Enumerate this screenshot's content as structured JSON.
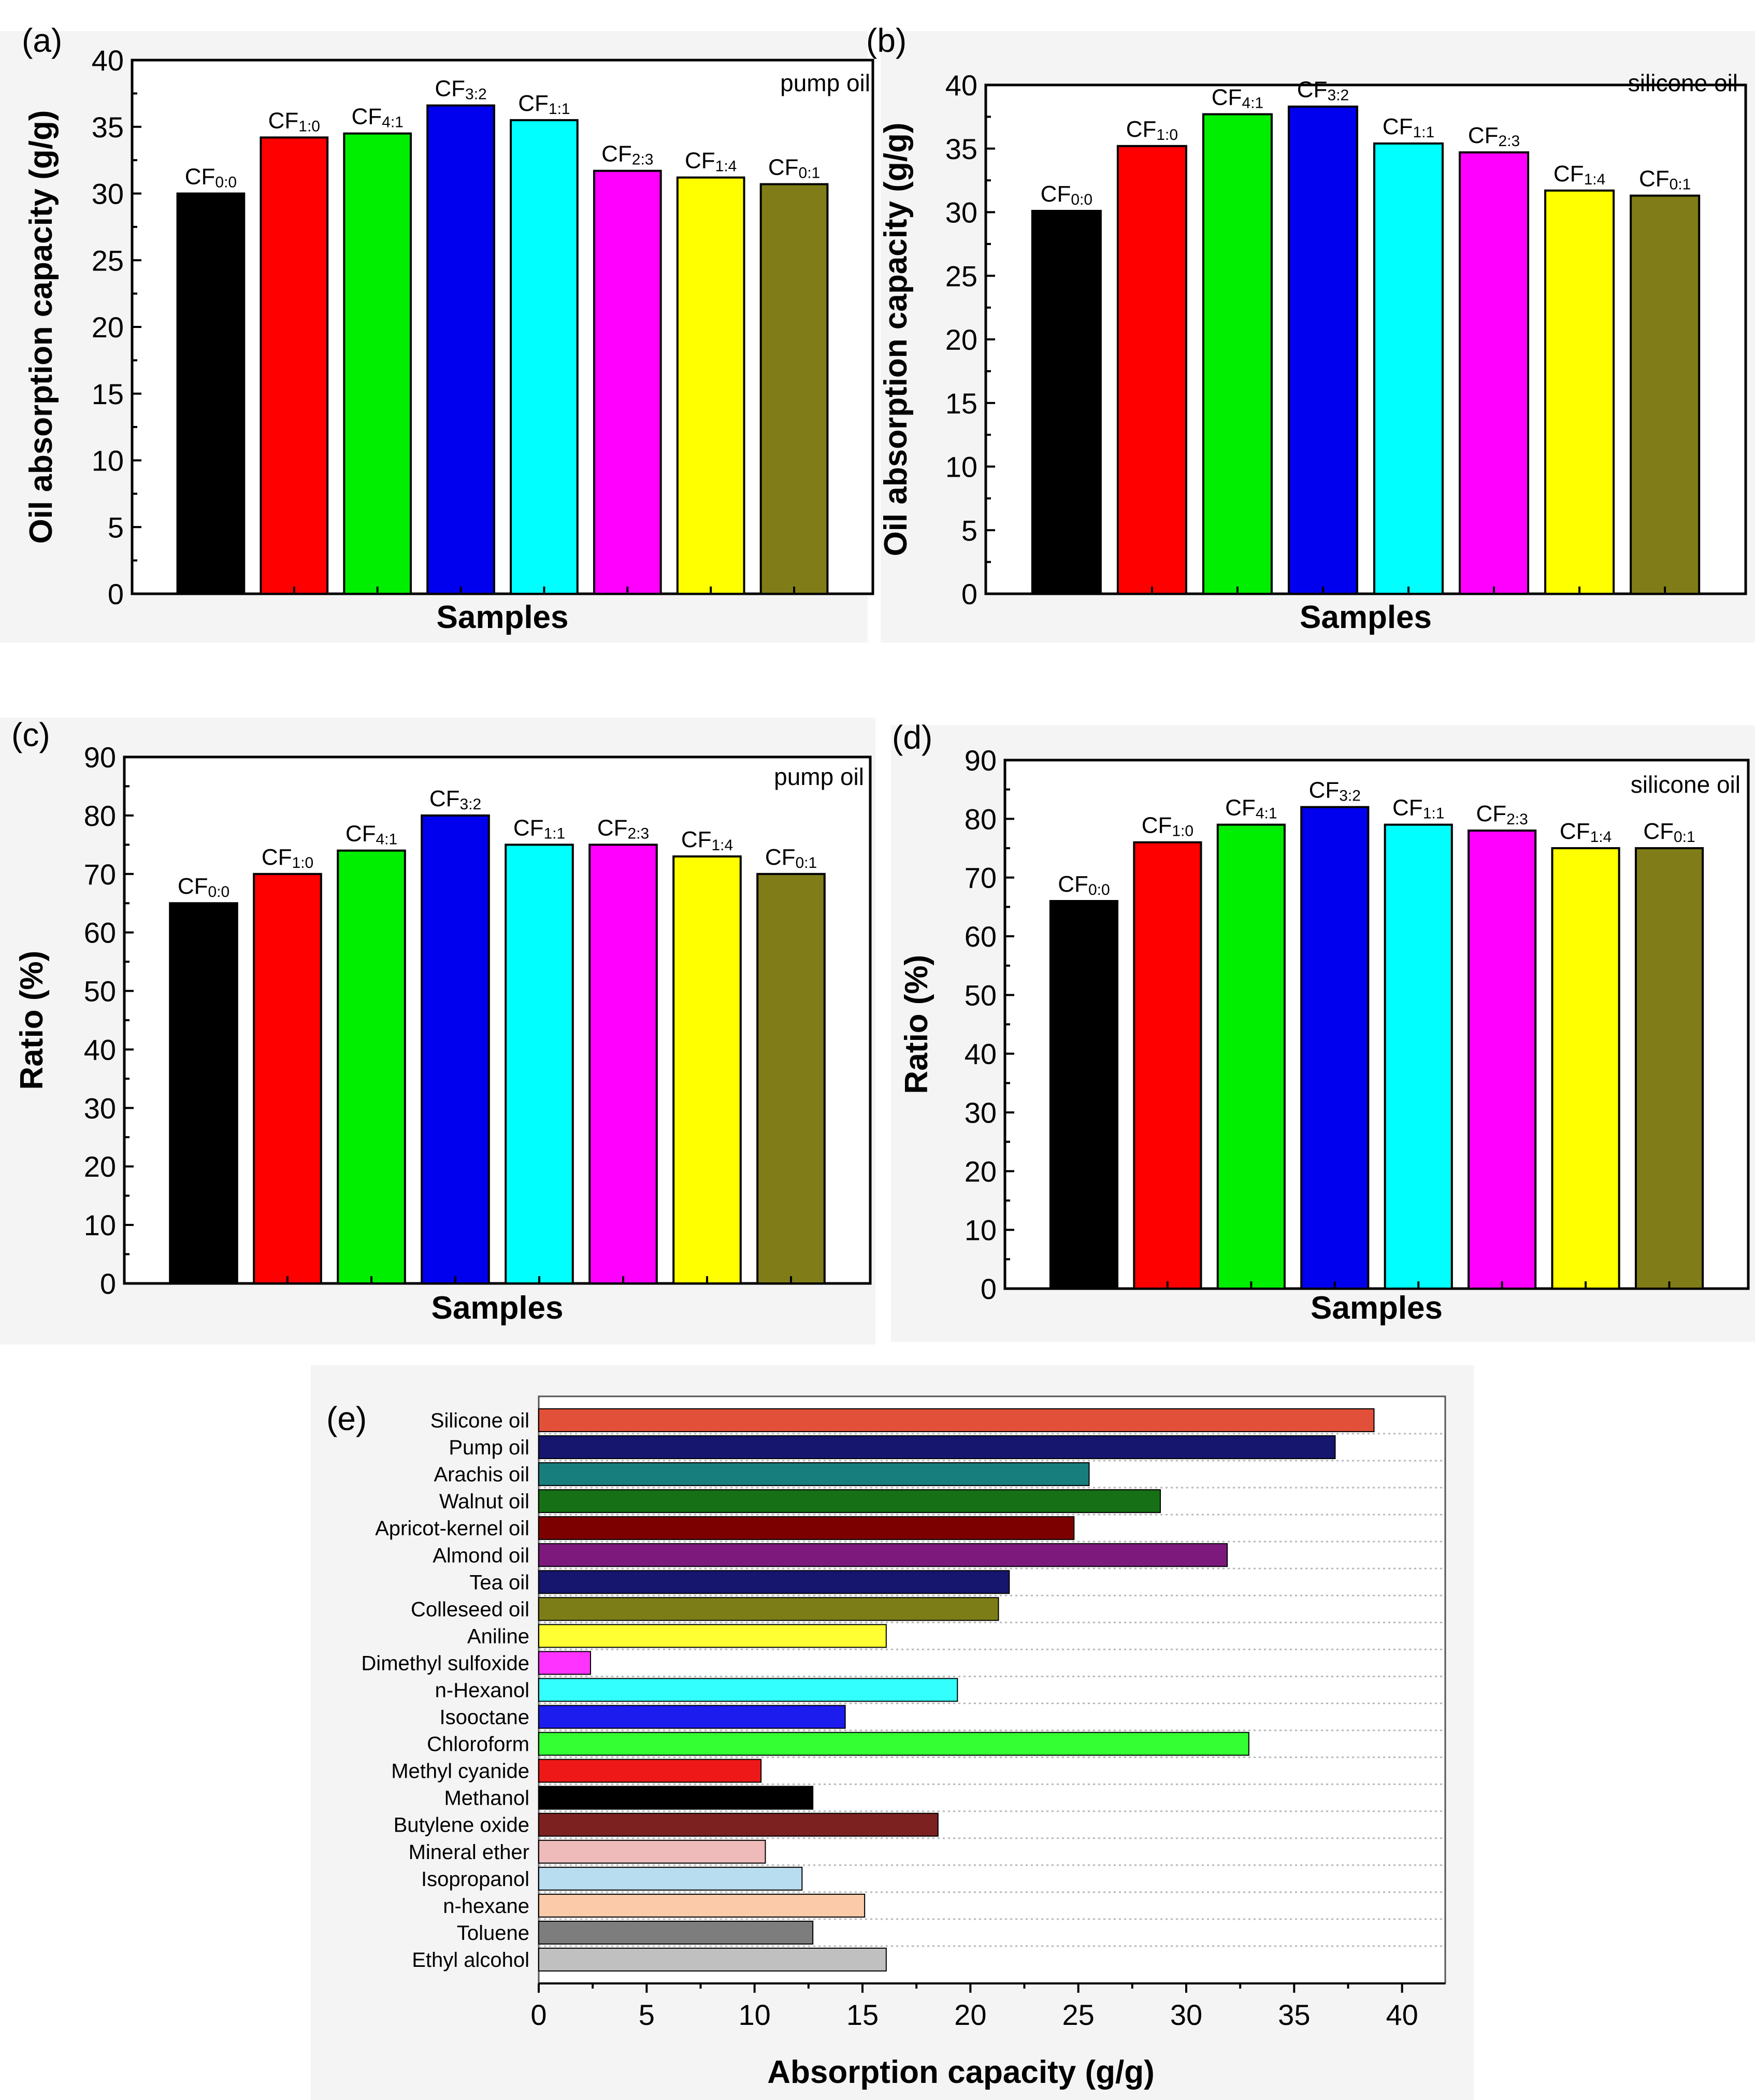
{
  "chart_data": [
    {
      "panel": "(a)",
      "type": "bar",
      "annotation": "pump oil",
      "xlabel": "Samples",
      "ylabel": "Oil absorption capacity (g/g)",
      "ylim": [
        0,
        40
      ],
      "yticks": [
        "0",
        "5",
        "10",
        "15",
        "20",
        "25",
        "30",
        "35",
        "40"
      ],
      "categories": [
        {
          "base": "CF",
          "sub": "0:0"
        },
        {
          "base": "CF",
          "sub": "1:0"
        },
        {
          "base": "CF",
          "sub": "4:1"
        },
        {
          "base": "CF",
          "sub": "3:2"
        },
        {
          "base": "CF",
          "sub": "1:1"
        },
        {
          "base": "CF",
          "sub": "2:3"
        },
        {
          "base": "CF",
          "sub": "1:4"
        },
        {
          "base": "CF",
          "sub": "0:1"
        }
      ],
      "values": [
        30.0,
        34.2,
        34.5,
        36.6,
        35.5,
        31.7,
        31.2,
        30.7
      ],
      "colors": [
        "#000000",
        "#ff0000",
        "#00ee00",
        "#0000ee",
        "#00ffff",
        "#ff00ff",
        "#ffff00",
        "#807d18"
      ]
    },
    {
      "panel": "(b)",
      "type": "bar",
      "annotation": "silicone oil",
      "xlabel": "Samples",
      "ylabel": "Oil absorption capacity (g/g)",
      "ylim": [
        0,
        40
      ],
      "yticks": [
        "0",
        "5",
        "10",
        "15",
        "20",
        "25",
        "30",
        "35",
        "40"
      ],
      "categories": [
        {
          "base": "CF",
          "sub": "0:0"
        },
        {
          "base": "CF",
          "sub": "1:0"
        },
        {
          "base": "CF",
          "sub": "4:1"
        },
        {
          "base": "CF",
          "sub": "3:2"
        },
        {
          "base": "CF",
          "sub": "1:1"
        },
        {
          "base": "CF",
          "sub": "2:3"
        },
        {
          "base": "CF",
          "sub": "1:4"
        },
        {
          "base": "CF",
          "sub": "0:1"
        }
      ],
      "values": [
        30.1,
        35.2,
        37.7,
        38.3,
        35.4,
        34.7,
        31.7,
        31.3
      ],
      "colors": [
        "#000000",
        "#ff0000",
        "#00ee00",
        "#0000ee",
        "#00ffff",
        "#ff00ff",
        "#ffff00",
        "#807d18"
      ]
    },
    {
      "panel": "(c)",
      "type": "bar",
      "annotation": "pump oil",
      "xlabel": "Samples",
      "ylabel": "Ratio (%)",
      "ylim": [
        0,
        90
      ],
      "yticks": [
        "0",
        "10",
        "20",
        "30",
        "40",
        "50",
        "60",
        "70",
        "80",
        "90"
      ],
      "categories": [
        {
          "base": "CF",
          "sub": "0:0"
        },
        {
          "base": "CF",
          "sub": "1:0"
        },
        {
          "base": "CF",
          "sub": "4:1"
        },
        {
          "base": "CF",
          "sub": "3:2"
        },
        {
          "base": "CF",
          "sub": "1:1"
        },
        {
          "base": "CF",
          "sub": "2:3"
        },
        {
          "base": "CF",
          "sub": "1:4"
        },
        {
          "base": "CF",
          "sub": "0:1"
        }
      ],
      "values": [
        65,
        70,
        74,
        80,
        75,
        75,
        73,
        70
      ],
      "colors": [
        "#000000",
        "#ff0000",
        "#00ee00",
        "#0000ee",
        "#00ffff",
        "#ff00ff",
        "#ffff00",
        "#807d18"
      ]
    },
    {
      "panel": "(d)",
      "type": "bar",
      "annotation": "silicone oil",
      "xlabel": "Samples",
      "ylabel": "Ratio (%)",
      "ylim": [
        0,
        90
      ],
      "yticks": [
        "0",
        "10",
        "20",
        "30",
        "40",
        "50",
        "60",
        "70",
        "80",
        "90"
      ],
      "categories": [
        {
          "base": "CF",
          "sub": "0:0"
        },
        {
          "base": "CF",
          "sub": "1:0"
        },
        {
          "base": "CF",
          "sub": "4:1"
        },
        {
          "base": "CF",
          "sub": "3:2"
        },
        {
          "base": "CF",
          "sub": "1:1"
        },
        {
          "base": "CF",
          "sub": "2:3"
        },
        {
          "base": "CF",
          "sub": "1:4"
        },
        {
          "base": "CF",
          "sub": "0:1"
        }
      ],
      "values": [
        66,
        76,
        79,
        82,
        79,
        78,
        75,
        75
      ],
      "colors": [
        "#000000",
        "#ff0000",
        "#00ee00",
        "#0000ee",
        "#00ffff",
        "#ff00ff",
        "#ffff00",
        "#807d18"
      ]
    },
    {
      "panel": "(e)",
      "type": "bar",
      "orientation": "horizontal",
      "xlabel": "Absorption capacity (g/g)",
      "ylabel": "",
      "xlim": [
        0,
        42
      ],
      "xticks": [
        "0",
        "5",
        "10",
        "15",
        "20",
        "25",
        "30",
        "35",
        "40"
      ],
      "grid": "horizontal dotted",
      "categories": [
        "Silicone oil",
        "Pump oil",
        "Arachis oil",
        "Walnut oil",
        "Apricot-kernel oil",
        "Almond oil",
        "Tea oil",
        "Colleseed oil",
        "Aniline",
        "Dimethyl sulfoxide",
        "n-Hexanol",
        "Isooctane",
        "Chloroform",
        "Methyl cyanide",
        "Methanol",
        "Butylene oxide",
        "Mineral ether",
        "Isopropanol",
        "n-hexane",
        "Toluene",
        "Ethyl alcohol"
      ],
      "values": [
        38.7,
        36.9,
        25.5,
        28.8,
        24.8,
        31.9,
        21.8,
        21.3,
        16.1,
        2.4,
        19.4,
        14.2,
        32.9,
        10.3,
        12.7,
        18.5,
        10.5,
        12.2,
        15.1,
        12.7,
        16.1
      ],
      "colors": [
        "#e2503a",
        "#16166f",
        "#187d7d",
        "#167016",
        "#7d0000",
        "#7d187d",
        "#16166f",
        "#7d7d18",
        "#ffff33",
        "#ff33ff",
        "#33ffff",
        "#1c1cee",
        "#33ff33",
        "#ee1818",
        "#000000",
        "#7d2020",
        "#efbaba",
        "#b8dcf0",
        "#fbcba9",
        "#7d7d7d",
        "#c0c0c0"
      ]
    }
  ]
}
